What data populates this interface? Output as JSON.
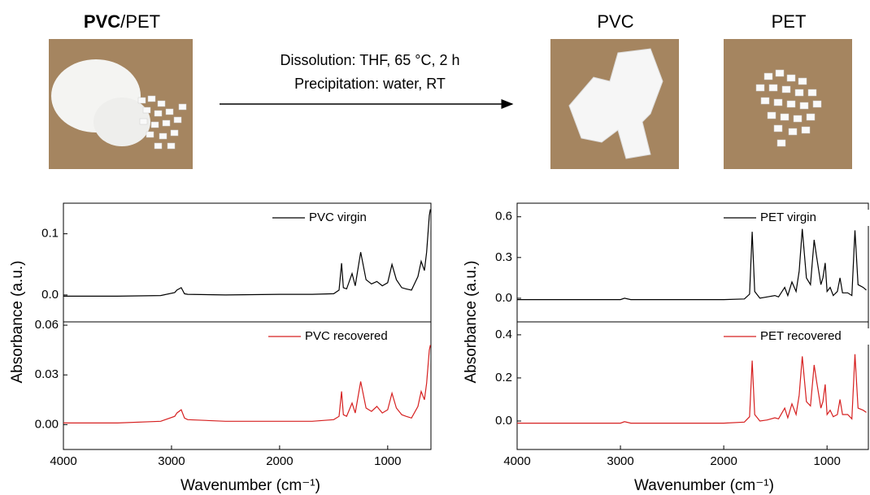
{
  "scheme": {
    "left_label_bold": "PVC",
    "left_label_rest": "/PET",
    "condition1": "Dissolution: THF, 65 °C, 2 h",
    "condition2": "Precipitation: water, RT",
    "product1": "PVC",
    "product2": "PET"
  },
  "chart_data": [
    {
      "type": "line",
      "ylabel": "Absorbance (a.u.)",
      "x": [
        4000,
        3500,
        3100,
        2970,
        2950,
        2910,
        2880,
        2850,
        2500,
        2000,
        1700,
        1500,
        1450,
        1427,
        1410,
        1380,
        1330,
        1300,
        1250,
        1200,
        1150,
        1100,
        1050,
        1000,
        960,
        920,
        870,
        830,
        780,
        720,
        690,
        660,
        640,
        615,
        605
      ],
      "series": [
        {
          "name": "PVC virgin",
          "color": "#000000",
          "values": [
            -0.002,
            -0.002,
            -0.001,
            0.004,
            0.008,
            0.012,
            0.002,
            0.001,
            0.0,
            0.001,
            0.001,
            0.002,
            0.008,
            0.052,
            0.012,
            0.01,
            0.035,
            0.015,
            0.07,
            0.025,
            0.018,
            0.022,
            0.015,
            0.02,
            0.05,
            0.025,
            0.012,
            0.01,
            0.008,
            0.03,
            0.055,
            0.04,
            0.07,
            0.13,
            0.14
          ]
        }
      ],
      "xlim": [
        4000,
        600
      ],
      "ylim": [
        -0.044,
        0.15
      ],
      "yticks": [
        {
          "value": 0,
          "label": "0.0"
        },
        0.1
      ]
    },
    {
      "type": "line",
      "xlabel": "Wavenumber (cm⁻¹)",
      "x": [
        4000,
        3500,
        3100,
        2970,
        2950,
        2910,
        2880,
        2850,
        2500,
        2000,
        1700,
        1500,
        1450,
        1427,
        1410,
        1380,
        1330,
        1300,
        1250,
        1200,
        1150,
        1100,
        1050,
        1000,
        960,
        920,
        870,
        830,
        780,
        720,
        690,
        660,
        640,
        615,
        605
      ],
      "series": [
        {
          "name": "PVC recovered",
          "color": "#d62020",
          "values": [
            0.001,
            0.001,
            0.002,
            0.005,
            0.007,
            0.009,
            0.004,
            0.003,
            0.002,
            0.002,
            0.002,
            0.003,
            0.005,
            0.02,
            0.006,
            0.005,
            0.013,
            0.007,
            0.026,
            0.01,
            0.008,
            0.011,
            0.007,
            0.009,
            0.019,
            0.01,
            0.006,
            0.005,
            0.004,
            0.011,
            0.02,
            0.015,
            0.025,
            0.045,
            0.048
          ]
        }
      ],
      "xlim": [
        4000,
        600
      ],
      "ylim": [
        -0.015,
        0.062
      ],
      "xticks": [
        4000,
        3000,
        2000,
        1000
      ],
      "yticks": [
        {
          "value": 0,
          "label": "0.00"
        },
        {
          "value": 0.03,
          "label": "0.03"
        },
        {
          "value": 0.06,
          "label": "0.06"
        }
      ]
    },
    {
      "type": "line",
      "ylabel": "Absorbance (a.u.)",
      "x": [
        4000,
        3500,
        3000,
        2960,
        2900,
        2000,
        1800,
        1750,
        1725,
        1700,
        1650,
        1580,
        1505,
        1470,
        1410,
        1380,
        1340,
        1300,
        1270,
        1240,
        1200,
        1160,
        1125,
        1100,
        1060,
        1040,
        1018,
        1000,
        970,
        940,
        900,
        875,
        850,
        800,
        760,
        730,
        700,
        650,
        620
      ],
      "series": [
        {
          "name": "PET virgin",
          "color": "#000000",
          "values": [
            -0.01,
            -0.01,
            -0.01,
            0.0,
            -0.01,
            -0.01,
            -0.005,
            0.03,
            0.49,
            0.05,
            0.0,
            0.01,
            0.02,
            0.01,
            0.08,
            0.02,
            0.12,
            0.05,
            0.2,
            0.51,
            0.15,
            0.1,
            0.43,
            0.3,
            0.1,
            0.15,
            0.26,
            0.05,
            0.08,
            0.02,
            0.05,
            0.15,
            0.04,
            0.04,
            0.02,
            0.5,
            0.1,
            0.08,
            0.06
          ]
        }
      ],
      "xlim": [
        4000,
        600
      ],
      "ylim": [
        -0.174,
        0.7
      ],
      "yticks": [
        {
          "value": 0,
          "label": "0.0"
        },
        0.3,
        0.6
      ]
    },
    {
      "type": "line",
      "xlabel": "Wavenumber (cm⁻¹)",
      "x": [
        4000,
        3500,
        3000,
        2960,
        2900,
        2000,
        1800,
        1750,
        1725,
        1700,
        1650,
        1580,
        1505,
        1470,
        1410,
        1380,
        1340,
        1300,
        1270,
        1240,
        1200,
        1160,
        1125,
        1100,
        1060,
        1040,
        1018,
        1000,
        970,
        940,
        900,
        875,
        850,
        800,
        760,
        730,
        700,
        650,
        620
      ],
      "series": [
        {
          "name": "PET recovered",
          "color": "#d62020",
          "values": [
            -0.01,
            -0.01,
            -0.01,
            -0.003,
            -0.01,
            -0.01,
            -0.005,
            0.02,
            0.28,
            0.03,
            0.0,
            0.005,
            0.015,
            0.01,
            0.06,
            0.015,
            0.08,
            0.03,
            0.12,
            0.3,
            0.09,
            0.07,
            0.26,
            0.18,
            0.06,
            0.09,
            0.17,
            0.03,
            0.05,
            0.02,
            0.03,
            0.1,
            0.03,
            0.03,
            0.01,
            0.31,
            0.06,
            0.05,
            0.04
          ]
        }
      ],
      "xlim": [
        4000,
        600
      ],
      "ylim": [
        -0.132,
        0.46
      ],
      "xticks": [
        4000,
        3000,
        2000,
        1000
      ],
      "yticks": [
        {
          "value": 0,
          "label": "0.0"
        },
        0.2,
        0.4
      ]
    }
  ]
}
